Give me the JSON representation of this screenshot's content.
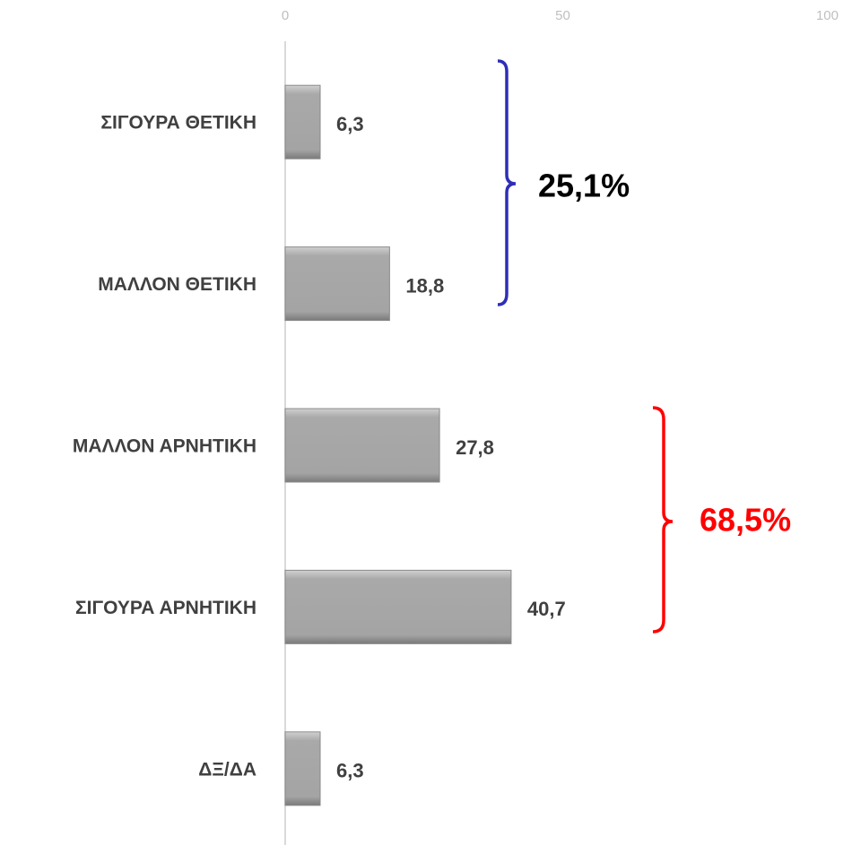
{
  "chart_data": {
    "type": "bar",
    "orientation": "horizontal",
    "categories": [
      "ΣΙΓΟΥΡΑ ΘΕΤΙΚΗ",
      "ΜΑΛΛΟΝ ΘΕΤΙΚΗ",
      "ΜΑΛΛΟΝ ΑΡΝΗΤΙΚΗ",
      "ΣΙΓΟΥΡΑ ΑΡΝΗΤΙΚΗ",
      "ΔΞ/ΔΑ"
    ],
    "values": [
      6.3,
      18.8,
      27.8,
      40.7,
      6.3
    ],
    "value_labels": [
      "6,3",
      "18,8",
      "27,8",
      "40,7",
      "6,3"
    ],
    "color": "#a6a6a6",
    "xlim": [
      0,
      100
    ],
    "xticks": [
      0,
      50,
      100
    ],
    "annotations": [
      {
        "text": "25,1%",
        "color": "#000000"
      },
      {
        "text": "68,5%",
        "color": "#ff0000"
      }
    ]
  }
}
